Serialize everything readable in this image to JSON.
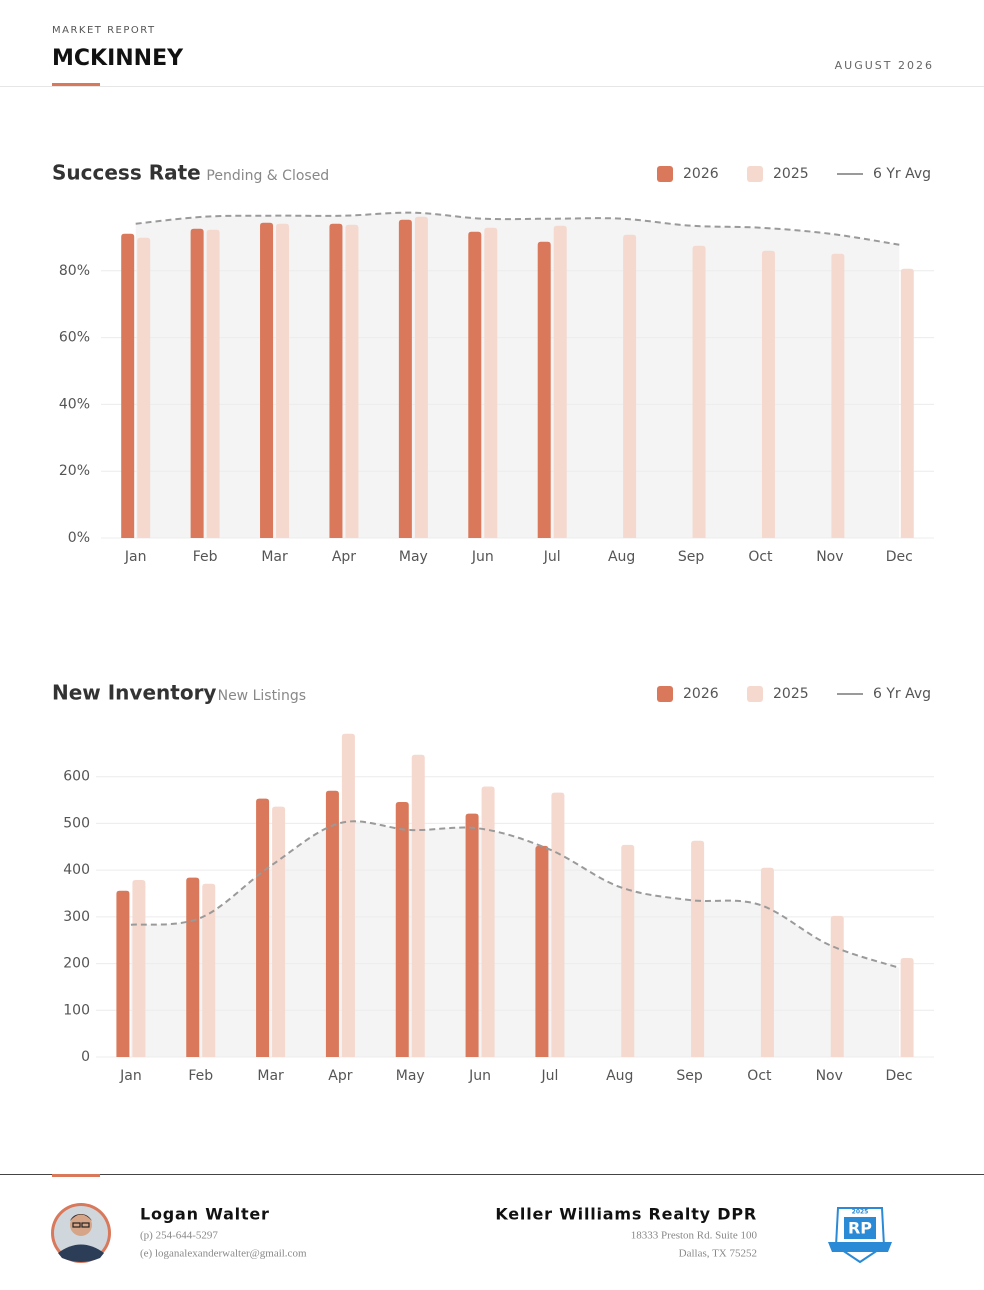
{
  "header": {
    "kicker": "MARKET REPORT",
    "title": "MCKINNEY",
    "date": "AUGUST 2026"
  },
  "chart_data": [
    {
      "type": "bar",
      "title": "Success Rate",
      "subtitle": "Pending & Closed",
      "categories": [
        "Jan",
        "Feb",
        "Mar",
        "Apr",
        "May",
        "Jun",
        "Jul",
        "Aug",
        "Sep",
        "Oct",
        "Nov",
        "Dec"
      ],
      "series": [
        {
          "name": "2026",
          "type": "bar",
          "color": "#d9785a",
          "values": [
            91.1,
            92.6,
            94.4,
            94.1,
            95.3,
            91.7,
            88.7,
            null,
            null,
            null,
            null,
            null
          ]
        },
        {
          "name": "2025",
          "type": "bar",
          "color": "#f5d9cf",
          "values": [
            89.9,
            92.3,
            94.1,
            93.8,
            96.2,
            92.9,
            93.5,
            90.8,
            87.5,
            86.0,
            85.1,
            80.6
          ]
        },
        {
          "name": "6 Yr Avg",
          "type": "line",
          "color": "#9a9a9a",
          "dashed": true,
          "values": [
            94.1,
            96.2,
            96.5,
            96.5,
            97.4,
            95.6,
            95.6,
            95.6,
            93.5,
            92.9,
            91.1,
            87.8
          ]
        }
      ],
      "ylim": [
        0,
        100
      ],
      "yticks": [
        {
          "value": 0,
          "label": "0%"
        },
        {
          "value": 20,
          "label": "20%"
        },
        {
          "value": 40,
          "label": "40%"
        },
        {
          "value": 60,
          "label": "60%"
        },
        {
          "value": 80,
          "label": "80%"
        }
      ],
      "grid": true
    },
    {
      "type": "bar",
      "title": "New Inventory",
      "subtitle": "New Listings",
      "categories": [
        "Jan",
        "Feb",
        "Mar",
        "Apr",
        "May",
        "Jun",
        "Jul",
        "Aug",
        "Sep",
        "Oct",
        "Nov",
        "Dec"
      ],
      "series": [
        {
          "name": "2026",
          "type": "bar",
          "color": "#d9785a",
          "values": [
            356,
            384,
            553,
            570,
            546,
            521,
            452,
            null,
            null,
            null,
            null,
            null
          ]
        },
        {
          "name": "2025",
          "type": "bar",
          "color": "#f5d9cf",
          "values": [
            379,
            371,
            536,
            692,
            647,
            579,
            566,
            454,
            463,
            405,
            302,
            212
          ]
        },
        {
          "name": "6 Yr Avg",
          "type": "line",
          "color": "#9a9a9a",
          "dashed": true,
          "values": [
            283,
            298,
            409,
            501,
            486,
            489,
            444,
            364,
            336,
            326,
            240,
            191
          ]
        }
      ],
      "ylim": [
        0,
        700
      ],
      "yticks": [
        0,
        100,
        200,
        300,
        400,
        500,
        600
      ],
      "grid": true
    }
  ],
  "footer": {
    "agent_name": "Logan Walter",
    "phone": "(p) 254-644-5297",
    "email": "(e) loganalexanderwalter@gmail.com",
    "brokerage": "Keller Williams Realty DPR",
    "address_line1": "18333 Preston Rd. Suite 100",
    "address_line2": "Dallas, TX 75252",
    "badge_year": "2025",
    "badge_mark": "RP"
  }
}
